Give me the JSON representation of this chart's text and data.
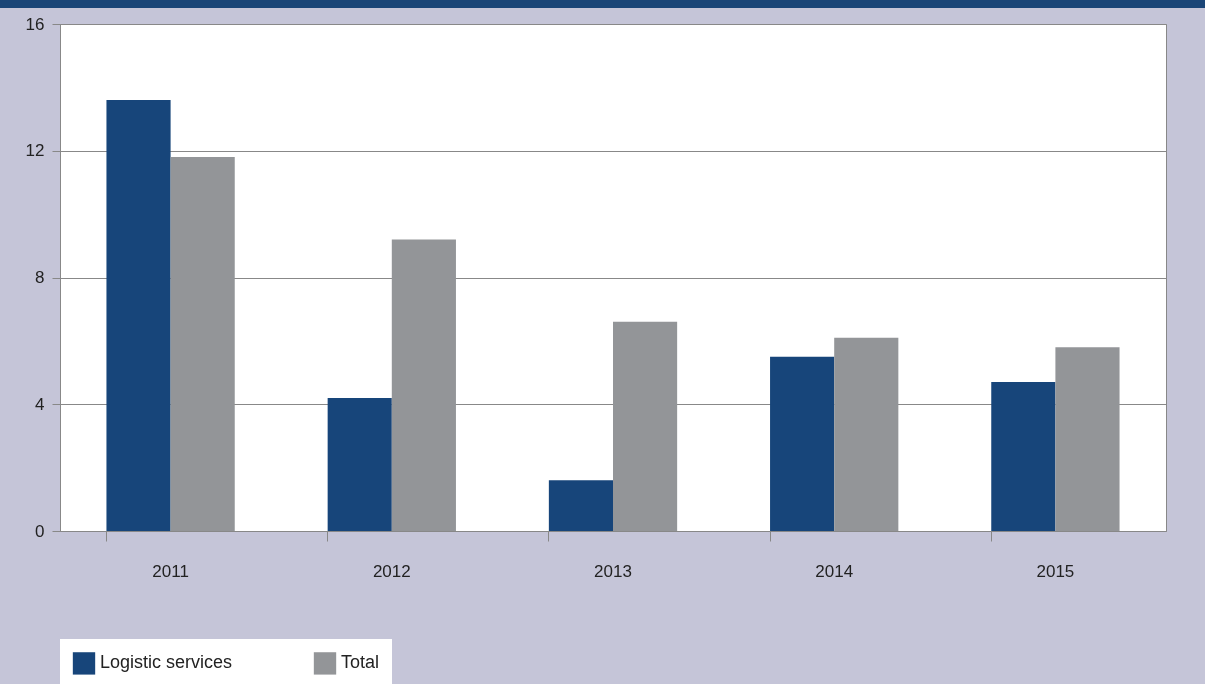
{
  "chart_data": {
    "type": "bar",
    "categories": [
      "2011",
      "2012",
      "2013",
      "2014",
      "2015"
    ],
    "series": [
      {
        "name": "Logistic services",
        "color": "#17457a",
        "values": [
          13.6,
          4.2,
          1.6,
          5.5,
          4.7
        ]
      },
      {
        "name": "Total",
        "color": "#939598",
        "values": [
          11.8,
          9.2,
          6.6,
          6.1,
          5.8
        ]
      }
    ],
    "ylim": [
      0,
      16
    ],
    "yticks": [
      0,
      4,
      8,
      12,
      16
    ],
    "grid": "y",
    "legend": "bottom"
  }
}
